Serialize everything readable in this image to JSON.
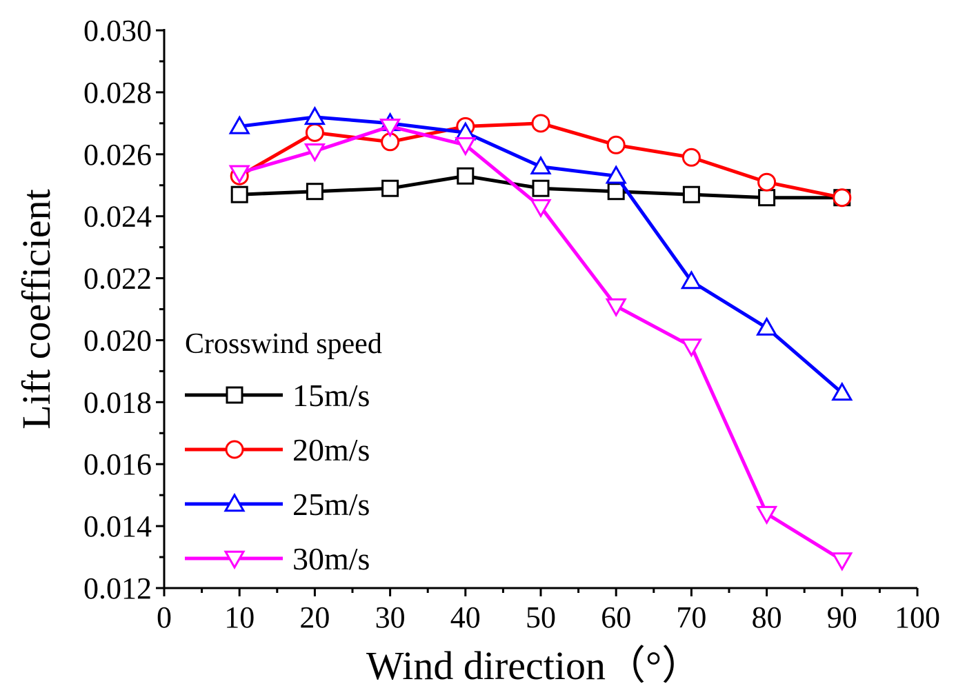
{
  "chart_data": {
    "type": "line",
    "title": "",
    "xlabel": "Wind direction（°）",
    "ylabel": "Lift coefficient",
    "xlim": [
      0,
      100
    ],
    "ylim": [
      0.012,
      0.03
    ],
    "x_ticks": [
      "0",
      "10",
      "20",
      "30",
      "40",
      "50",
      "60",
      "70",
      "80",
      "90",
      "100"
    ],
    "y_ticks": [
      "0.012",
      "0.014",
      "0.016",
      "0.018",
      "0.020",
      "0.022",
      "0.024",
      "0.026",
      "0.028",
      "0.030"
    ],
    "grid": false,
    "legend_title": "Crosswind speed",
    "legend_position": "bottom-left",
    "x": [
      10,
      20,
      30,
      40,
      50,
      60,
      70,
      80,
      90
    ],
    "series": [
      {
        "name": "15m/s",
        "color": "#000000",
        "marker": "square",
        "values": [
          0.0247,
          0.0248,
          0.0249,
          0.0253,
          0.0249,
          0.0248,
          0.0247,
          0.0246,
          0.0246
        ]
      },
      {
        "name": "20m/s",
        "color": "#ff0000",
        "marker": "circle",
        "values": [
          0.0253,
          0.0267,
          0.0264,
          0.0269,
          0.027,
          0.0263,
          0.0259,
          0.0251,
          0.0246
        ]
      },
      {
        "name": "25m/s",
        "color": "#0000ff",
        "marker": "triangle-up",
        "values": [
          0.0269,
          0.0272,
          0.027,
          0.0267,
          0.0256,
          0.0253,
          0.0219,
          0.0204,
          0.0183
        ]
      },
      {
        "name": "30m/s",
        "color": "#ff00ff",
        "marker": "triangle-down",
        "values": [
          0.0254,
          0.0261,
          0.0269,
          0.0263,
          0.0243,
          0.0211,
          0.0198,
          0.0144,
          0.0129
        ]
      }
    ]
  }
}
